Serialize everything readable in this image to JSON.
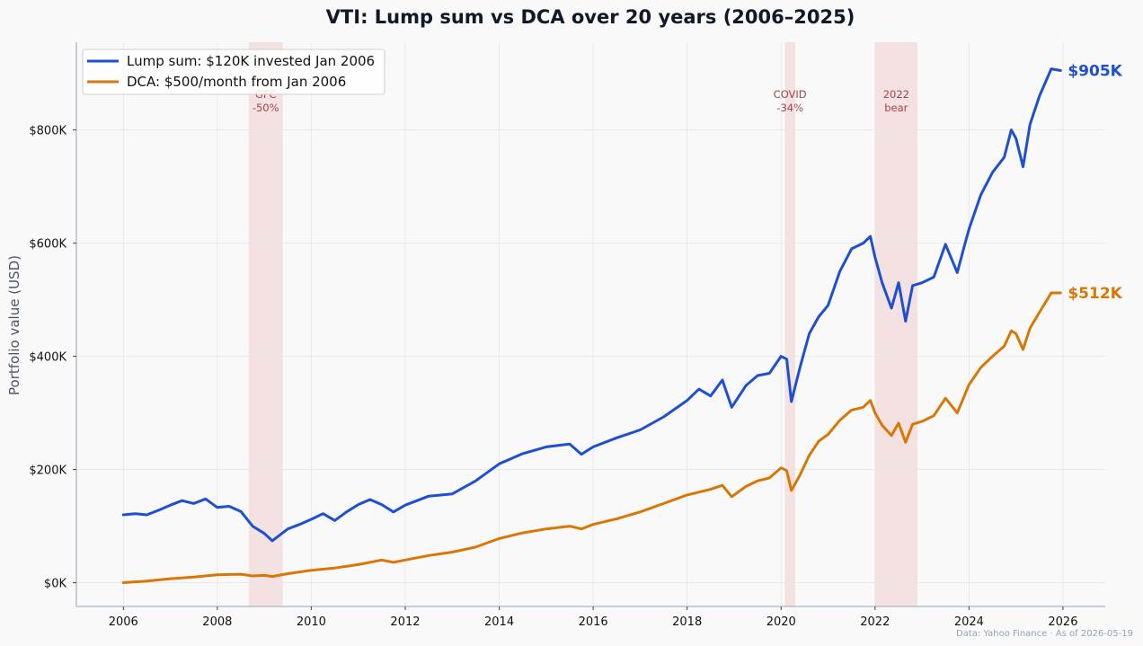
{
  "chart_data": {
    "type": "line",
    "title": "VTI: Lump sum vs DCA over 20 years (2006–2025)",
    "xlabel": "",
    "ylabel": "Portfolio value (USD)",
    "xlim": [
      2005.0,
      2026.9
    ],
    "ylim": [
      -42000,
      955000
    ],
    "x_ticks": [
      2006,
      2008,
      2010,
      2012,
      2014,
      2016,
      2018,
      2020,
      2022,
      2024,
      2026
    ],
    "x_tick_labels": [
      "2006",
      "2008",
      "2010",
      "2012",
      "2014",
      "2016",
      "2018",
      "2020",
      "2022",
      "2024",
      "2026"
    ],
    "y_ticks": [
      0,
      200000,
      400000,
      600000,
      800000
    ],
    "y_tick_labels": [
      "$0K",
      "$200K",
      "$400K",
      "$600K",
      "$800K"
    ],
    "grid": true,
    "legend_position": "top-left",
    "shaded_periods": [
      {
        "start": 2008.67,
        "end": 2009.39,
        "label_lines": [
          "GFC",
          "-50%"
        ]
      },
      {
        "start": 2020.08,
        "end": 2020.3,
        "label_lines": [
          "COVID",
          "-34%"
        ]
      },
      {
        "start": 2022.0,
        "end": 2022.9,
        "label_lines": [
          "2022",
          "bear"
        ]
      }
    ],
    "series": [
      {
        "name": "Lump sum: $120K invested Jan 2006",
        "color": "#1f4fd1",
        "end_label": "$905K",
        "x": [
          2006.0,
          2006.25,
          2006.5,
          2006.75,
          2007.0,
          2007.25,
          2007.5,
          2007.75,
          2008.0,
          2008.25,
          2008.5,
          2008.75,
          2009.0,
          2009.17,
          2009.5,
          2009.75,
          2010.0,
          2010.25,
          2010.5,
          2010.75,
          2011.0,
          2011.25,
          2011.5,
          2011.75,
          2012.0,
          2012.5,
          2013.0,
          2013.5,
          2014.0,
          2014.5,
          2015.0,
          2015.5,
          2015.75,
          2016.0,
          2016.5,
          2017.0,
          2017.5,
          2018.0,
          2018.25,
          2018.5,
          2018.75,
          2018.95,
          2019.25,
          2019.5,
          2019.75,
          2020.0,
          2020.12,
          2020.22,
          2020.4,
          2020.6,
          2020.8,
          2021.0,
          2021.25,
          2021.5,
          2021.75,
          2021.9,
          2022.0,
          2022.15,
          2022.35,
          2022.5,
          2022.65,
          2022.8,
          2023.0,
          2023.25,
          2023.5,
          2023.75,
          2023.9,
          2024.0,
          2024.25,
          2024.5,
          2024.75,
          2024.9,
          2025.0,
          2025.15,
          2025.3,
          2025.5,
          2025.75,
          2025.95
        ],
        "y": [
          120000,
          122000,
          120000,
          128000,
          137000,
          145000,
          140000,
          148000,
          133000,
          135000,
          126000,
          100000,
          87000,
          74000,
          95000,
          103000,
          112000,
          122000,
          110000,
          125000,
          138000,
          147000,
          138000,
          125000,
          137000,
          153000,
          157000,
          180000,
          210000,
          228000,
          240000,
          245000,
          227000,
          240000,
          256000,
          270000,
          293000,
          322000,
          342000,
          330000,
          358000,
          310000,
          348000,
          366000,
          370000,
          400000,
          395000,
          320000,
          380000,
          440000,
          470000,
          490000,
          550000,
          590000,
          600000,
          612000,
          575000,
          530000,
          485000,
          530000,
          462000,
          525000,
          530000,
          540000,
          598000,
          548000,
          595000,
          625000,
          685000,
          725000,
          752000,
          800000,
          785000,
          735000,
          810000,
          860000,
          908000,
          905000
        ]
      },
      {
        "name": "DCA: $500/month from Jan 2006",
        "color": "#d97706",
        "end_label": "$512K",
        "x": [
          2006.0,
          2006.5,
          2007.0,
          2007.5,
          2008.0,
          2008.5,
          2008.75,
          2009.0,
          2009.17,
          2009.5,
          2010.0,
          2010.5,
          2011.0,
          2011.5,
          2011.75,
          2012.0,
          2012.5,
          2013.0,
          2013.5,
          2014.0,
          2014.5,
          2015.0,
          2015.5,
          2015.75,
          2016.0,
          2016.5,
          2017.0,
          2017.5,
          2018.0,
          2018.5,
          2018.75,
          2018.95,
          2019.25,
          2019.5,
          2019.75,
          2020.0,
          2020.12,
          2020.22,
          2020.4,
          2020.6,
          2020.8,
          2021.0,
          2021.25,
          2021.5,
          2021.75,
          2021.9,
          2022.0,
          2022.15,
          2022.35,
          2022.5,
          2022.65,
          2022.8,
          2023.0,
          2023.25,
          2023.5,
          2023.75,
          2023.9,
          2024.0,
          2024.25,
          2024.5,
          2024.75,
          2024.9,
          2025.0,
          2025.15,
          2025.3,
          2025.5,
          2025.75,
          2025.95
        ],
        "y": [
          0,
          3000,
          7000,
          10000,
          14000,
          15000,
          12000,
          13000,
          11000,
          16000,
          22000,
          26000,
          32000,
          40000,
          36000,
          40000,
          48000,
          54000,
          63000,
          78000,
          88000,
          95000,
          100000,
          95000,
          103000,
          113000,
          125000,
          140000,
          155000,
          165000,
          172000,
          152000,
          170000,
          180000,
          185000,
          203000,
          198000,
          163000,
          190000,
          225000,
          250000,
          262000,
          287000,
          305000,
          310000,
          322000,
          300000,
          278000,
          260000,
          282000,
          248000,
          280000,
          285000,
          295000,
          326000,
          300000,
          330000,
          350000,
          380000,
          400000,
          418000,
          445000,
          440000,
          412000,
          450000,
          478000,
          512000,
          512000
        ]
      }
    ],
    "source_note": "Data: Yahoo Finance · As of 2026-05-19"
  }
}
